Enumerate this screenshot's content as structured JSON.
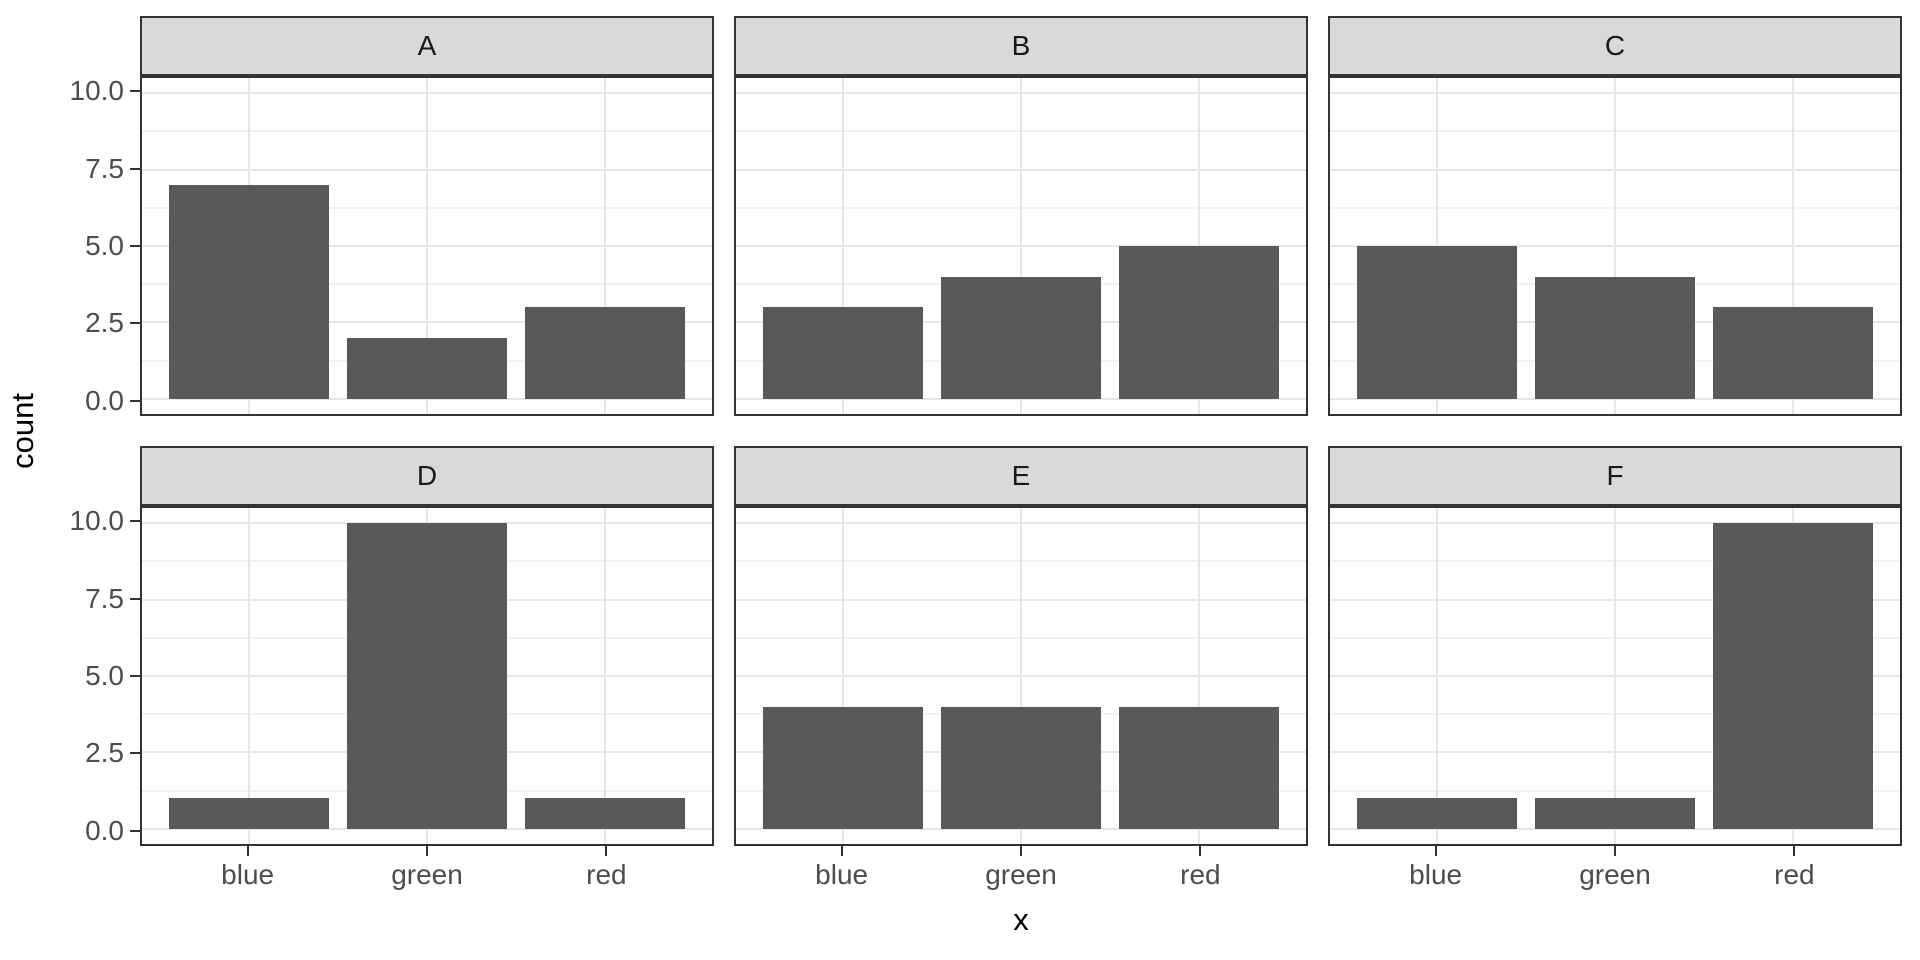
{
  "chart_data": {
    "type": "bar",
    "title": "",
    "xlabel": "x",
    "ylabel": "count",
    "categories": [
      "blue",
      "green",
      "red"
    ],
    "facets": [
      {
        "label": "A",
        "values": [
          7,
          2,
          3
        ]
      },
      {
        "label": "B",
        "values": [
          3,
          4,
          5
        ]
      },
      {
        "label": "C",
        "values": [
          5,
          4,
          3
        ]
      },
      {
        "label": "D",
        "values": [
          1,
          10,
          1
        ]
      },
      {
        "label": "E",
        "values": [
          4,
          4,
          4
        ]
      },
      {
        "label": "F",
        "values": [
          1,
          1,
          10
        ]
      }
    ],
    "facet_layout": {
      "rows": 2,
      "cols": 3
    },
    "y_ticks": [
      0,
      2.5,
      5,
      7.5,
      10
    ],
    "y_tick_labels": [
      "0.0",
      "2.5",
      "5.0",
      "7.5",
      "10.0"
    ],
    "y_minor_ticks": [
      1.25,
      3.75,
      6.25,
      8.75
    ],
    "ylim": [
      -0.5,
      10.5
    ],
    "bar_rel_width": 0.9,
    "grid": true,
    "legend": "none",
    "colors": {
      "bar_fill": "#595959",
      "strip_fill": "#D9D9D9",
      "panel_border": "#333333",
      "grid_major": "#E7E7E7",
      "grid_minor": "#F1F1F1",
      "axis_text": "#4D4D4D",
      "axis_title": "#000000",
      "tick_mark": "#333333",
      "background": "#FFFFFF"
    }
  }
}
